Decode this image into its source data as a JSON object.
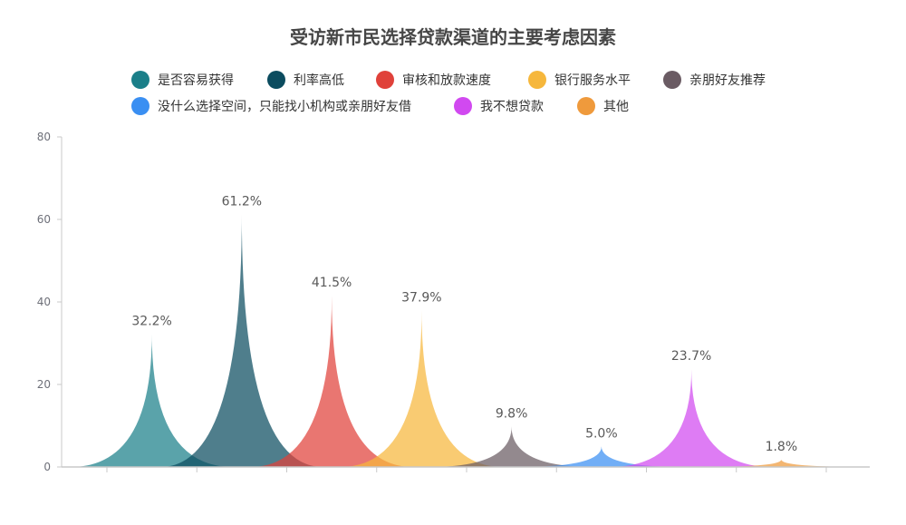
{
  "chart_data": {
    "type": "area",
    "title": "受访新市民选择贷款渠道的主要考虑因素",
    "xlabel": "",
    "ylabel": "",
    "ylim": [
      0,
      80
    ],
    "yticks": [
      0,
      20,
      40,
      60,
      80
    ],
    "legend_position": "top-center",
    "grid": false,
    "series": [
      {
        "name": "是否容易获得",
        "value": 32.2,
        "label": "32.2%",
        "color": "#1b7f89"
      },
      {
        "name": "利率高低",
        "value": 61.2,
        "label": "61.2%",
        "color": "#0b4c5f"
      },
      {
        "name": "审核和放款速度",
        "value": 41.5,
        "label": "41.5%",
        "color": "#e0413a"
      },
      {
        "name": "银行服务水平",
        "value": 37.9,
        "label": "37.9%",
        "color": "#f6b73c"
      },
      {
        "name": "亲朋好友推荐",
        "value": 9.8,
        "label": "9.8%",
        "color": "#6a5b63"
      },
      {
        "name": "没什么选择空间，只能找小机构或亲朋好友借",
        "value": 5.0,
        "label": "5.0%",
        "color": "#3a8ff2"
      },
      {
        "name": "我不想贷款",
        "value": 23.7,
        "label": "23.7%",
        "color": "#d149f0"
      },
      {
        "name": "其他",
        "value": 1.8,
        "label": "1.8%",
        "color": "#ef9a3c"
      }
    ]
  }
}
